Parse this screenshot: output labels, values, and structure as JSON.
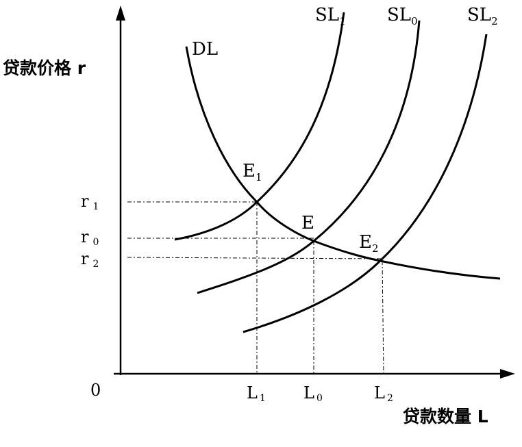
{
  "axes": {
    "y_label": "贷款价格 r",
    "x_label": "贷款数量 L",
    "origin": "0"
  },
  "curves": {
    "demand": "DL",
    "supply_1": {
      "name": "SL",
      "sub": "1"
    },
    "supply_0": {
      "name": "SL",
      "sub": "0"
    },
    "supply_2": {
      "name": "SL",
      "sub": "2"
    }
  },
  "points": {
    "e1": {
      "name": "E",
      "sub": "1"
    },
    "e": {
      "name": "E",
      "sub": ""
    },
    "e2": {
      "name": "E",
      "sub": "2"
    }
  },
  "y_ticks": [
    {
      "name": "r",
      "sub": "1"
    },
    {
      "name": "r",
      "sub": "0"
    },
    {
      "name": "r",
      "sub": "2"
    }
  ],
  "x_ticks": [
    {
      "name": "L",
      "sub": "1"
    },
    {
      "name": "L",
      "sub": "0"
    },
    {
      "name": "L",
      "sub": "2"
    }
  ]
}
